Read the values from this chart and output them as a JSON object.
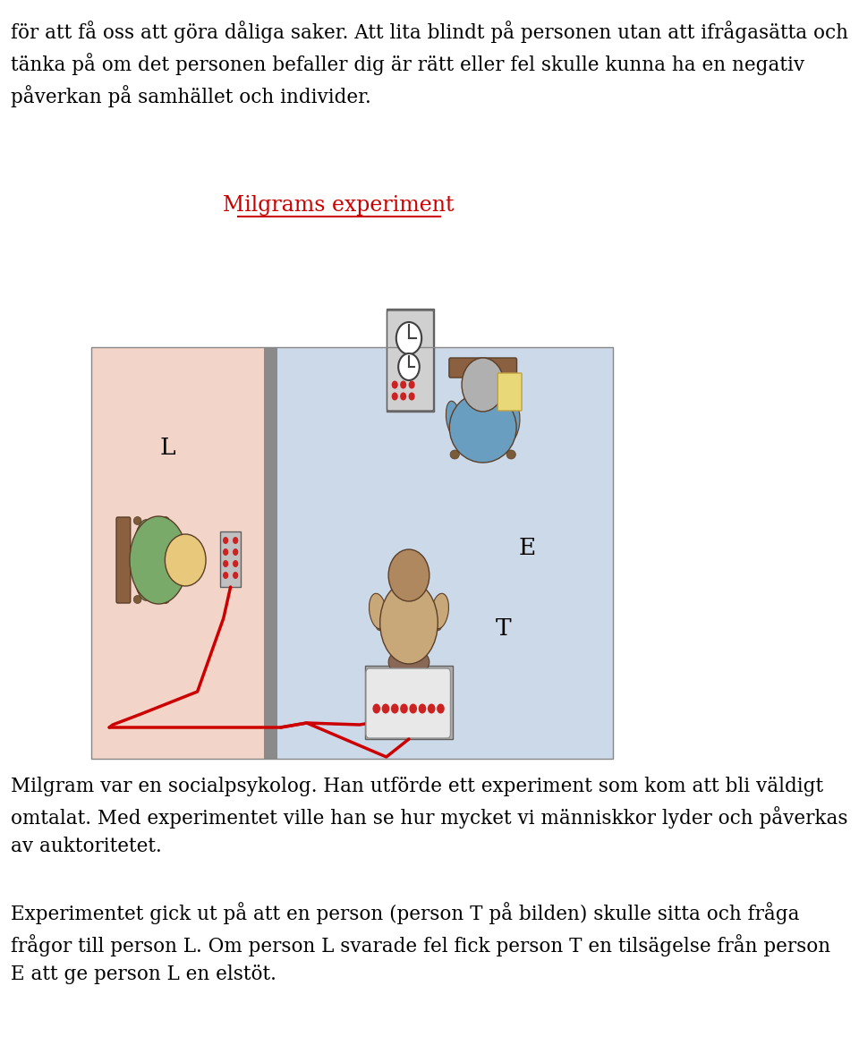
{
  "bg_color": "#ffffff",
  "top_text": "för att få oss att göra dåliga saker. Att lita blindt på personen utan att ifrågasätta och\ntänka på om det personen befaller dig är rätt eller fel skulle kunna ha en negativ\npåverkan på samhället och individer.",
  "heading": "Milgrams experiment",
  "heading_color": "#cc0000",
  "bottom_text1": "Milgram var en socialpsykolog. Han utförde ett experiment som kom att bli väldigt\nomtalat. Med experimentet ville han se hur mycket vi människkor lyder och påverkas\nav auktoritetet.",
  "bottom_text2": "Experimentet gick ut på att en person (person T på bilden) skulle sitta och fråga\nfrågor till person L. Om person L svarade fel fick person T en tilsägelse från person\nE att ge person L en elstöt.",
  "left_room_color": "#f2d5c8",
  "right_room_color": "#ccd9e8",
  "wall_color": "#8a8a8a",
  "font_size_body": 15.5,
  "font_size_heading": 17
}
